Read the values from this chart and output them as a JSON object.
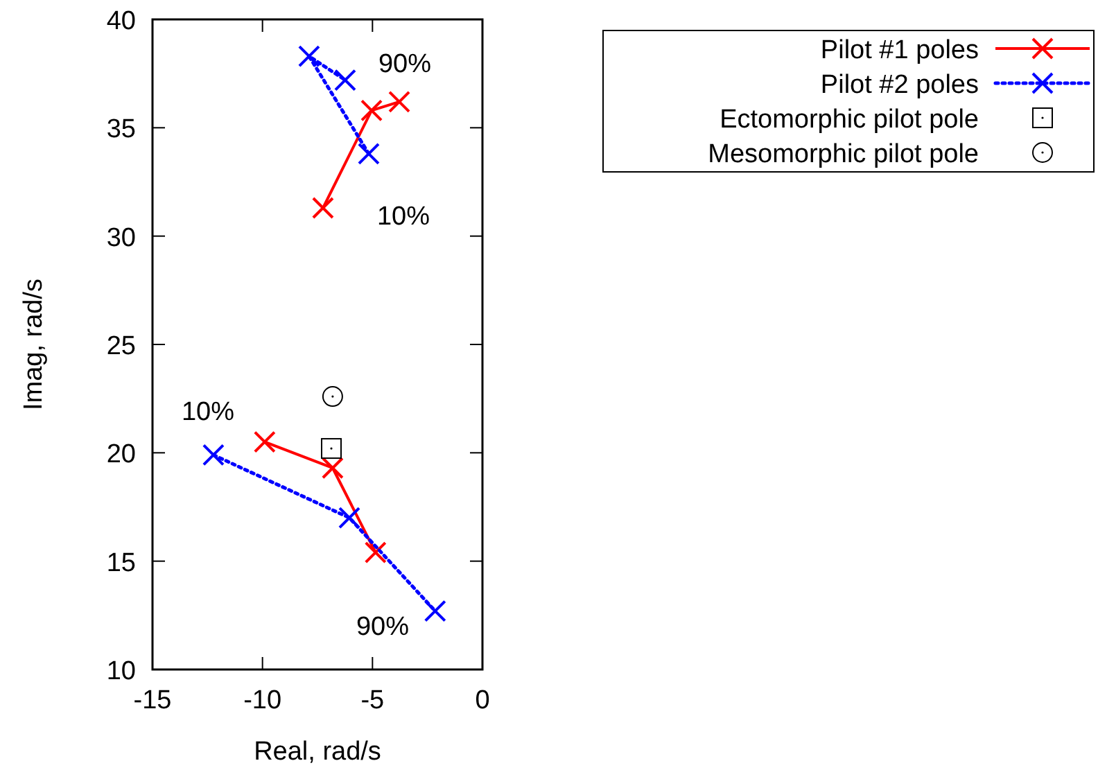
{
  "chart_data": {
    "type": "line",
    "xlabel": "Real, rad/s",
    "ylabel": "Imag, rad/s",
    "xlim": [
      -15,
      0
    ],
    "xticks": [
      -15,
      -10,
      -5,
      0
    ],
    "ylim": [
      10,
      40
    ],
    "yticks": [
      10,
      15,
      20,
      25,
      30,
      35,
      40
    ],
    "grid": false,
    "legend": "top right",
    "series": [
      {
        "name": "Pilot #1 poles",
        "color": "#ff0000",
        "marker": "cross",
        "line_style": "solid",
        "x": [
          -7.25,
          -5.04,
          -3.78,
          null,
          -9.9,
          -6.81,
          -4.86
        ],
        "values": [
          31.3,
          35.8,
          36.2,
          null,
          20.5,
          19.3,
          15.4
        ]
      },
      {
        "name": "Pilot #2 poles",
        "color": "#0000ff",
        "marker": "cross",
        "line_style": "dotted",
        "x": [
          -5.17,
          -7.88,
          -6.24,
          null,
          -12.23,
          -6.05,
          -2.15
        ],
        "values": [
          33.8,
          38.3,
          37.2,
          null,
          19.9,
          17.0,
          12.7
        ]
      },
      {
        "name": "Ectomorphic pilot pole",
        "type": "scatter",
        "color": "#000000",
        "marker": "square",
        "x": [
          -6.87
        ],
        "values": [
          20.2
        ]
      },
      {
        "name": "Mesomorphic pilot pole",
        "type": "scatter",
        "color": "#000000",
        "marker": "circle",
        "x": [
          -6.81
        ],
        "values": [
          22.6
        ]
      }
    ],
    "annotations": [
      "90%",
      "10%",
      "10%",
      "90%"
    ]
  }
}
